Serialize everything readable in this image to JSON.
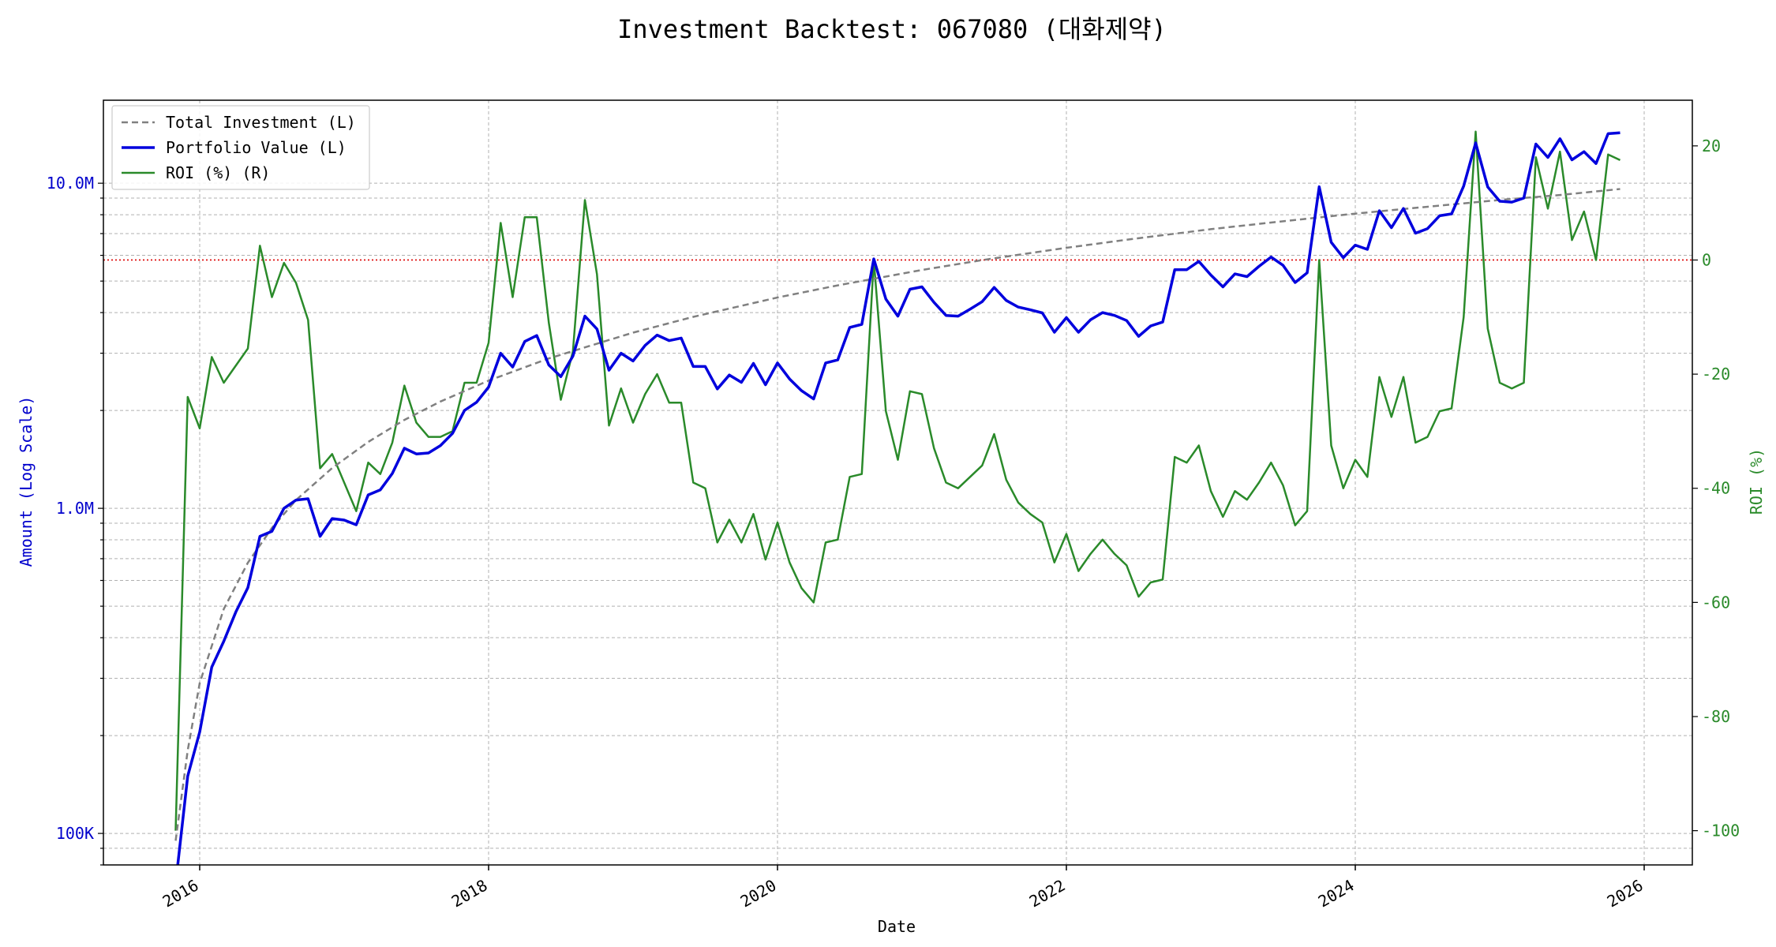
{
  "chart_data": {
    "type": "line",
    "title": "Investment Backtest: 067080 (대화제약)",
    "xlabel": "Date",
    "ylabel_left": "Amount (Log Scale)",
    "ylabel_right": "ROI (%)",
    "x_ticks": [
      "2016",
      "2018",
      "2020",
      "2022",
      "2024",
      "2026"
    ],
    "y_left_ticks": [
      "100K",
      "1.0M",
      "10.0M"
    ],
    "y_left_scale": "log",
    "y_left_range": [
      80000,
      18000000
    ],
    "y_right_ticks": [
      "-100",
      "-80",
      "-60",
      "-40",
      "-20",
      "0",
      "20"
    ],
    "y_right_range": [
      -106,
      28
    ],
    "x_range": [
      "2015-05-01",
      "2026-05-01"
    ],
    "zero_line": {
      "value": 0,
      "axis": "right",
      "style": "dotted",
      "color": "#dd0000"
    },
    "grid": true,
    "legend": {
      "position": "top-left",
      "items": [
        "Total Investment (L)",
        "Portfolio Value (L)",
        "ROI (%) (R)"
      ]
    },
    "colors": {
      "total_investment": "#808080",
      "portfolio_value": "#0000dd",
      "roi": "#2a8a2a",
      "left_axis": "#0000cc",
      "right_axis": "#2a8a2a"
    },
    "series": [
      {
        "name": "Total Investment (L)",
        "axis": "left",
        "style": "dashed",
        "dates": [
          "2015-11-01",
          "2015-12-01",
          "2016-01-01",
          "2016-03-01",
          "2016-05-01",
          "2016-07-01",
          "2016-09-01",
          "2016-12-01",
          "2017-03-01",
          "2017-06-01",
          "2017-09-01",
          "2018-01-01",
          "2018-06-01",
          "2019-01-01",
          "2019-06-01",
          "2020-01-01",
          "2020-06-01",
          "2021-01-01",
          "2021-06-01",
          "2022-01-01",
          "2022-06-01",
          "2023-01-01",
          "2023-06-01",
          "2024-01-01",
          "2024-06-01",
          "2025-01-01",
          "2025-06-01",
          "2025-11-01"
        ],
        "values": [
          95000,
          180000,
          290000,
          490000,
          680000,
          870000,
          1060000,
          1330000,
          1600000,
          1870000,
          2130000,
          2470000,
          2890000,
          3470000,
          3880000,
          4450000,
          4850000,
          5410000,
          5800000,
          6330000,
          6700000,
          7220000,
          7570000,
          8060000,
          8400000,
          8880000,
          9200000,
          9600000
        ]
      },
      {
        "name": "Portfolio Value (L)",
        "axis": "left",
        "style": "solid",
        "dates": [
          "2015-11-01",
          "2015-12-01",
          "2016-01-01",
          "2016-02-01",
          "2016-03-01",
          "2016-04-01",
          "2016-05-01",
          "2016-06-01",
          "2016-07-01",
          "2016-08-01",
          "2016-09-01",
          "2016-10-01",
          "2016-11-01",
          "2016-12-01",
          "2017-01-01",
          "2017-02-01",
          "2017-03-01",
          "2017-04-01",
          "2017-05-01",
          "2017-06-01",
          "2017-07-01",
          "2017-08-01",
          "2017-09-01",
          "2017-10-01",
          "2017-11-01",
          "2017-12-01",
          "2018-01-01",
          "2018-02-01",
          "2018-03-01",
          "2018-04-01",
          "2018-05-01",
          "2018-06-01",
          "2018-07-01",
          "2018-08-01",
          "2018-09-01",
          "2018-10-01",
          "2018-11-01",
          "2018-12-01",
          "2019-01-01",
          "2019-02-01",
          "2019-03-01",
          "2019-04-01",
          "2019-05-01",
          "2019-06-01",
          "2019-07-01",
          "2019-08-01",
          "2019-09-01",
          "2019-10-01",
          "2019-11-01",
          "2019-12-01",
          "2020-01-01",
          "2020-02-01",
          "2020-03-01",
          "2020-04-01",
          "2020-05-01",
          "2020-06-01",
          "2020-07-01",
          "2020-08-01",
          "2020-09-01",
          "2020-10-01",
          "2020-11-01",
          "2020-12-01",
          "2021-01-01",
          "2021-02-01",
          "2021-03-01",
          "2021-04-01",
          "2021-05-01",
          "2021-06-01",
          "2021-07-01",
          "2021-08-01",
          "2021-09-01",
          "2021-10-01",
          "2021-11-01",
          "2021-12-01",
          "2022-01-01",
          "2022-02-01",
          "2022-03-01",
          "2022-04-01",
          "2022-05-01",
          "2022-06-01",
          "2022-07-01",
          "2022-08-01",
          "2022-09-01",
          "2022-10-01",
          "2022-11-01",
          "2022-12-01",
          "2023-01-01",
          "2023-02-01",
          "2023-03-01",
          "2023-04-01",
          "2023-05-01",
          "2023-06-01",
          "2023-07-01",
          "2023-08-01",
          "2023-09-01",
          "2023-10-01",
          "2023-11-01",
          "2023-12-01",
          "2024-01-01",
          "2024-02-01",
          "2024-03-01",
          "2024-04-01",
          "2024-05-01",
          "2024-06-01",
          "2024-07-01",
          "2024-08-01",
          "2024-09-01",
          "2024-10-01",
          "2024-11-01",
          "2024-12-01",
          "2025-01-01",
          "2025-02-01",
          "2025-03-01",
          "2025-04-01",
          "2025-05-01",
          "2025-06-01",
          "2025-07-01",
          "2025-08-01",
          "2025-09-01",
          "2025-10-01",
          "2025-11-01"
        ],
        "values": [
          70000,
          150000,
          205000,
          325000,
          390000,
          480000,
          570000,
          820000,
          850000,
          1000000,
          1060000,
          1070000,
          820000,
          930000,
          920000,
          890000,
          1100000,
          1140000,
          1280000,
          1530000,
          1470000,
          1480000,
          1560000,
          1700000,
          2000000,
          2120000,
          2360000,
          3000000,
          2720000,
          3260000,
          3400000,
          2760000,
          2540000,
          2940000,
          3900000,
          3560000,
          2660000,
          3000000,
          2840000,
          3170000,
          3410000,
          3280000,
          3340000,
          2730000,
          2730000,
          2330000,
          2570000,
          2440000,
          2790000,
          2400000,
          2800000,
          2500000,
          2300000,
          2170000,
          2800000,
          2860000,
          3600000,
          3680000,
          5850000,
          4400000,
          3900000,
          4720000,
          4800000,
          4300000,
          3920000,
          3900000,
          4100000,
          4320000,
          4780000,
          4360000,
          4160000,
          4080000,
          3990000,
          3480000,
          3860000,
          3480000,
          3800000,
          4000000,
          3920000,
          3780000,
          3380000,
          3640000,
          3740000,
          5420000,
          5420000,
          5750000,
          5220000,
          4800000,
          5260000,
          5160000,
          5550000,
          5930000,
          5590000,
          4950000,
          5300000,
          9750000,
          6580000,
          5900000,
          6450000,
          6260000,
          8230000,
          7300000,
          8360000,
          7020000,
          7250000,
          7940000,
          8050000,
          9800000,
          13300000,
          9740000,
          8800000,
          8750000,
          9000000,
          13200000,
          12000000,
          13700000,
          11800000,
          12500000,
          11500000,
          14200000,
          14300000
        ]
      },
      {
        "name": "ROI (%) (R)",
        "axis": "right",
        "style": "solid",
        "dates": [
          "2015-11-01",
          "2015-12-01",
          "2016-01-01",
          "2016-02-01",
          "2016-03-01",
          "2016-05-01",
          "2016-06-01",
          "2016-07-01",
          "2016-08-01",
          "2016-09-01",
          "2016-10-01",
          "2016-11-01",
          "2016-12-01",
          "2017-02-01",
          "2017-03-01",
          "2017-04-01",
          "2017-05-01",
          "2017-06-01",
          "2017-07-01",
          "2017-08-01",
          "2017-09-01",
          "2017-10-01",
          "2017-11-01",
          "2017-12-01",
          "2018-01-01",
          "2018-02-01",
          "2018-03-01",
          "2018-04-01",
          "2018-05-01",
          "2018-06-01",
          "2018-07-01",
          "2018-08-01",
          "2018-09-01",
          "2018-10-01",
          "2018-11-01",
          "2018-12-01",
          "2019-01-01",
          "2019-02-01",
          "2019-03-01",
          "2019-04-01",
          "2019-05-01",
          "2019-06-01",
          "2019-07-01",
          "2019-08-01",
          "2019-09-01",
          "2019-10-01",
          "2019-11-01",
          "2019-12-01",
          "2020-01-01",
          "2020-02-01",
          "2020-03-01",
          "2020-04-01",
          "2020-05-01",
          "2020-06-01",
          "2020-07-01",
          "2020-08-01",
          "2020-09-01",
          "2020-10-01",
          "2020-11-01",
          "2020-12-01",
          "2021-01-01",
          "2021-02-01",
          "2021-03-01",
          "2021-04-01",
          "2021-05-01",
          "2021-06-01",
          "2021-07-01",
          "2021-08-01",
          "2021-09-01",
          "2021-10-01",
          "2021-11-01",
          "2021-12-01",
          "2022-01-01",
          "2022-02-01",
          "2022-03-01",
          "2022-04-01",
          "2022-05-01",
          "2022-06-01",
          "2022-07-01",
          "2022-08-01",
          "2022-09-01",
          "2022-10-01",
          "2022-11-01",
          "2022-12-01",
          "2023-01-01",
          "2023-02-01",
          "2023-03-01",
          "2023-04-01",
          "2023-05-01",
          "2023-06-01",
          "2023-07-01",
          "2023-08-01",
          "2023-09-01",
          "2023-10-01",
          "2023-11-01",
          "2023-12-01",
          "2024-01-01",
          "2024-02-01",
          "2024-03-01",
          "2024-04-01",
          "2024-05-01",
          "2024-06-01",
          "2024-07-01",
          "2024-08-01",
          "2024-09-01",
          "2024-10-01",
          "2024-11-01",
          "2024-12-01",
          "2025-01-01",
          "2025-02-01",
          "2025-03-01",
          "2025-04-01",
          "2025-05-01",
          "2025-06-01",
          "2025-07-01",
          "2025-08-01",
          "2025-09-01",
          "2025-10-01",
          "2025-11-01"
        ],
        "values": [
          -100,
          -24,
          -29.5,
          -17,
          -21.5,
          -15.5,
          2.5,
          -6.5,
          -0.5,
          -4,
          -10.5,
          -36.5,
          -34,
          -44,
          -35.5,
          -37.5,
          -32,
          -22,
          -28.5,
          -31,
          -31,
          -30,
          -21.5,
          -21.5,
          -14.5,
          6.5,
          -6.5,
          7.5,
          7.5,
          -11,
          -24.5,
          -16,
          10.5,
          -2.5,
          -29,
          -22.5,
          -28.5,
          -23.5,
          -20,
          -25,
          -25,
          -39,
          -40,
          -49.5,
          -45.5,
          -49.5,
          -44.5,
          -52.5,
          -46,
          -53,
          -57.5,
          -60,
          -49.5,
          -49,
          -38,
          -37.5,
          0,
          -26.5,
          -35,
          -23,
          -23.5,
          -33,
          -39,
          -40,
          -38,
          -36,
          -30.5,
          -38.5,
          -42.5,
          -44.5,
          -46,
          -53,
          -48,
          -54.5,
          -51.5,
          -49,
          -51.5,
          -53.5,
          -59,
          -56.5,
          -56,
          -34.5,
          -35.5,
          -32.5,
          -40.5,
          -45,
          -40.5,
          -42,
          -39,
          -35.5,
          -39.5,
          -46.5,
          -44,
          0,
          -32.5,
          -40,
          -35,
          -38,
          -20.5,
          -27.5,
          -20.5,
          -32,
          -31,
          -26.5,
          -26,
          -10,
          22.5,
          -12,
          -21.5,
          -22.5,
          -21.5,
          18,
          9,
          19,
          3.5,
          8.5,
          0,
          18.5,
          17.5
        ]
      }
    ]
  }
}
